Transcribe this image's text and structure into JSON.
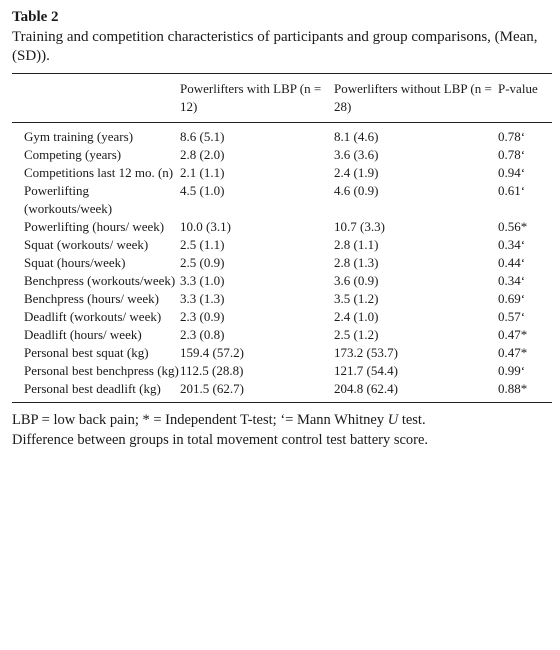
{
  "table_label": "Table 2",
  "caption": "Training and competition characteristics of participants and group comparisons, (Mean, (SD)).",
  "columns": [
    "",
    "Powerlifters with LBP (n = 12)",
    "Powerlifters without LBP (n = 28)",
    "P-value"
  ],
  "rows": [
    {
      "label": "Gym training (years)",
      "with_lbp": "8.6 (5.1)",
      "without_lbp": "8.1 (4.6)",
      "p": "0.78‘"
    },
    {
      "label": "Competing (years)",
      "with_lbp": "2.8 (2.0)",
      "without_lbp": "3.6 (3.6)",
      "p": "0.78‘"
    },
    {
      "label": "Competitions last 12 mo. (n)",
      "with_lbp": "2.1 (1.1)",
      "without_lbp": "2.4 (1.9)",
      "p": "0.94‘"
    },
    {
      "label": "Powerlifting (workouts/week)",
      "with_lbp": "4.5 (1.0)",
      "without_lbp": "4.6 (0.9)",
      "p": "0.61‘"
    },
    {
      "label": "Powerlifting (hours/ week)",
      "with_lbp": "10.0 (3.1)",
      "without_lbp": "10.7 (3.3)",
      "p": "0.56*"
    },
    {
      "label": "Squat (workouts/ week)",
      "with_lbp": "2.5 (1.1)",
      "without_lbp": "2.8 (1.1)",
      "p": "0.34‘"
    },
    {
      "label": "Squat (hours/week)",
      "with_lbp": "2.5 (0.9)",
      "without_lbp": "2.8 (1.3)",
      "p": "0.44‘"
    },
    {
      "label": "Benchpress (workouts/week)",
      "with_lbp": "3.3 (1.0)",
      "without_lbp": "3.6 (0.9)",
      "p": "0.34‘"
    },
    {
      "label": "Benchpress (hours/ week)",
      "with_lbp": "3.3 (1.3)",
      "without_lbp": "3.5 (1.2)",
      "p": "0.69‘"
    },
    {
      "label": "Deadlift (workouts/ week)",
      "with_lbp": "2.3 (0.9)",
      "without_lbp": "2.4 (1.0)",
      "p": "0.57‘"
    },
    {
      "label": "Deadlift (hours/ week)",
      "with_lbp": "2.3 (0.8)",
      "without_lbp": "2.5 (1.2)",
      "p": "0.47*"
    },
    {
      "label": "Personal best squat (kg)",
      "with_lbp": "159.4 (57.2)",
      "without_lbp": "173.2 (53.7)",
      "p": "0.47*"
    },
    {
      "label": "Personal best benchpress (kg)",
      "with_lbp": "112.5 (28.8)",
      "without_lbp": "121.7 (54.4)",
      "p": "0.99‘"
    },
    {
      "label": "Personal best deadlift (kg)",
      "with_lbp": "201.5 (62.7)",
      "without_lbp": "204.8 (62.4)",
      "p": "0.88*"
    }
  ],
  "footnote_line1_prefix": "LBP = low back pain; * = Independent T-test; ‘= Mann Whitney ",
  "footnote_line1_italic": "U",
  "footnote_line1_suffix": " test.",
  "footnote_line2": "Difference between groups in total movement control test battery score."
}
